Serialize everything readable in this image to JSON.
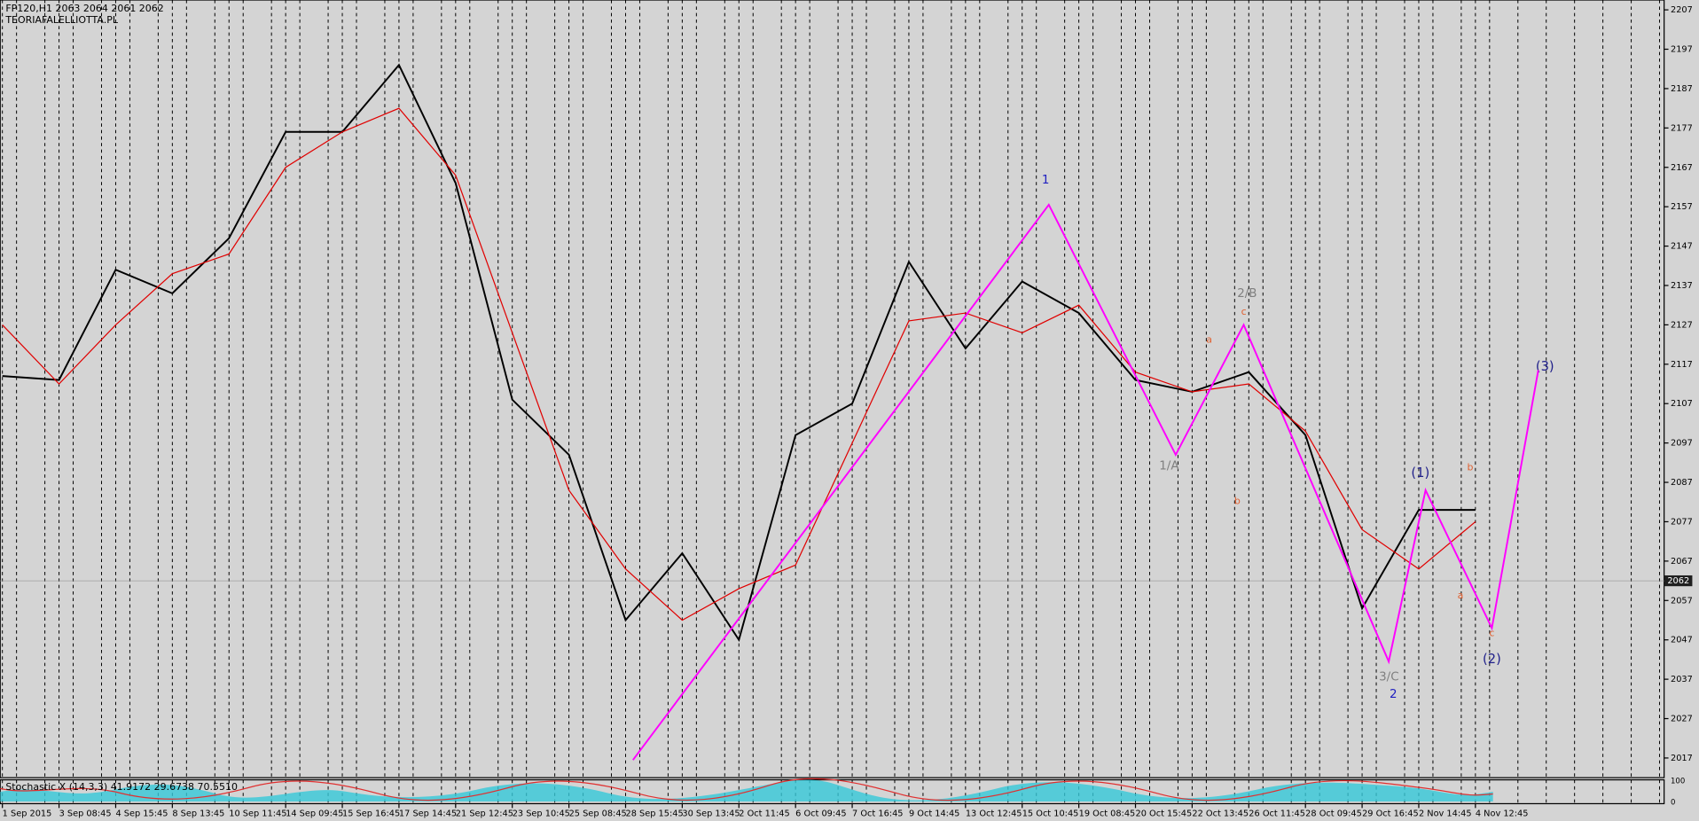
{
  "chart_data": {
    "type": "line",
    "title": "FP120,H1  2063 2064 2061 2062",
    "subtitle": "TEORIAFALELLIOTTA.PL",
    "categories": [
      "1 Sep 2015",
      "3 Sep 08:45",
      "4 Sep 15:45",
      "8 Sep 13:45",
      "10 Sep 11:45",
      "14 Sep 09:45",
      "15 Sep 16:45",
      "17 Sep 14:45",
      "21 Sep 12:45",
      "23 Sep 10:45",
      "25 Sep 08:45",
      "28 Sep 15:45",
      "30 Sep 13:45",
      "2 Oct 11:45",
      "6 Oct 09:45",
      "7 Oct 16:45",
      "9 Oct 14:45",
      "13 Oct 12:45",
      "15 Oct 10:45",
      "19 Oct 08:45",
      "20 Oct 15:45",
      "22 Oct 13:45",
      "26 Oct 11:45",
      "28 Oct 09:45",
      "29 Oct 16:45",
      "2 Nov 14:45",
      "4 Nov 12:45"
    ],
    "series": [
      {
        "name": "Price",
        "color": "#000000",
        "values": [
          2114,
          2113,
          2141,
          2135,
          2149,
          2176,
          2176,
          2193,
          2163,
          2108,
          2094,
          2052,
          2069,
          2047,
          2099,
          2107,
          2143,
          2121,
          2138,
          2130,
          2113,
          2110,
          2115,
          2099,
          2055,
          2080,
          2080
        ]
      },
      {
        "name": "MA",
        "color": "#e00000",
        "values": [
          2127,
          2112,
          2127,
          2140,
          2145,
          2167,
          2176,
          2182,
          2165,
          2125,
          2085,
          2065,
          2052,
          2060,
          2066,
          2097,
          2128,
          2130,
          2125,
          2132,
          2115,
          2110,
          2112,
          2100,
          2075,
          2065,
          2077
        ]
      }
    ],
    "wave": {
      "color": "#ff00ff",
      "x": [
        11.13,
        18.47,
        20.71,
        21.91,
        24.47,
        25.12,
        26.29,
        27.11
      ],
      "values": [
        2016.5,
        2157.5,
        2094,
        2127,
        2041.5,
        2085,
        2050,
        2115.5
      ]
    },
    "last_price": 2062,
    "ylim": [
      2012,
      2209.5
    ],
    "yticks": [
      2017,
      2027,
      2037,
      2047,
      2057,
      2067,
      2077,
      2087,
      2097,
      2107,
      2117,
      2127,
      2137,
      2147,
      2157,
      2167,
      2177,
      2187,
      2197,
      2207
    ],
    "grid": true,
    "indicator": {
      "label": "Stochastic X (14,3,3) 41.9172 29.6738 70.5510",
      "yticks": [
        100,
        0
      ]
    },
    "annotations": [
      "1",
      "2/B",
      "1/A",
      "3/C",
      "2",
      "(1)",
      "(2)",
      "(3)",
      "a",
      "c",
      "b",
      "b",
      "a",
      "c"
    ]
  }
}
